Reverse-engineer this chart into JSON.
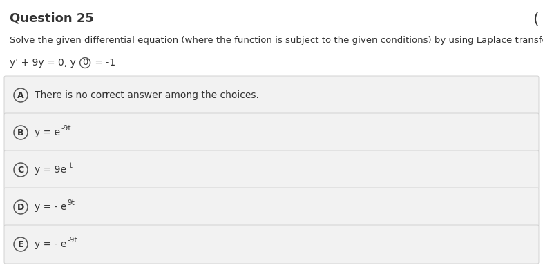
{
  "title": "Question 25",
  "subtitle": "Solve the given differential equation (where the function is subject to the given conditions) by using Laplace transforms.",
  "eq_before_circle": "y' + 9y = 0, y ",
  "eq_circle_char": "0",
  "eq_after_circle": " = -1",
  "choices": [
    {
      "label": "A",
      "main": "There is no correct answer among the choices.",
      "super": ""
    },
    {
      "label": "B",
      "main": "y = e",
      "super": "-9t"
    },
    {
      "label": "C",
      "main": "y = 9e",
      "super": "-t"
    },
    {
      "label": "D",
      "main": "y = - e",
      "super": "9t"
    },
    {
      "label": "E",
      "main": "y = - e",
      "super": "-9t"
    }
  ],
  "bg_color": "#ffffff",
  "choice_bg_color": "#f2f2f2",
  "choice_border_color": "#cccccc",
  "title_fontsize": 13,
  "subtitle_fontsize": 9.5,
  "equation_fontsize": 10,
  "choice_fontsize": 10,
  "super_fontsize": 7.5,
  "text_color": "#333333",
  "circle_color": "#555555",
  "label_fontsize": 9,
  "top_right_paren": "(",
  "figw": 7.86,
  "figh": 3.97,
  "dpi": 100
}
